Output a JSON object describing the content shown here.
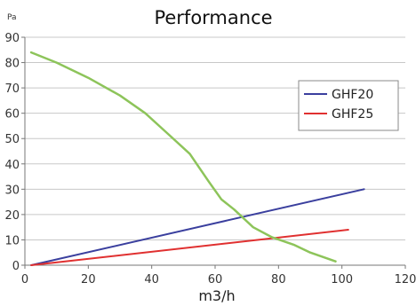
{
  "chart_data": {
    "type": "line",
    "title": "Performance",
    "xlabel": "m3/h",
    "ylabel": "Pa",
    "xlim": [
      0,
      120
    ],
    "ylim": [
      0,
      90
    ],
    "x_ticks": [
      0,
      20,
      40,
      60,
      80,
      100,
      120
    ],
    "y_ticks": [
      0,
      10,
      20,
      30,
      40,
      50,
      60,
      70,
      80,
      90
    ],
    "grid": "horizontal",
    "legend_position": "right",
    "series": [
      {
        "name": "GHF20",
        "color": "#3a3f9e",
        "points": [
          [
            2,
            0
          ],
          [
            107,
            30
          ]
        ]
      },
      {
        "name": "GHF25",
        "color": "#e03030",
        "points": [
          [
            2,
            0
          ],
          [
            102,
            14
          ]
        ]
      },
      {
        "name": "",
        "color": "#8dc45a",
        "points": [
          [
            2,
            84
          ],
          [
            10,
            80
          ],
          [
            20,
            74
          ],
          [
            30,
            67
          ],
          [
            38,
            60
          ],
          [
            45,
            52
          ],
          [
            52,
            44
          ],
          [
            58,
            33
          ],
          [
            62,
            26
          ],
          [
            66,
            22
          ],
          [
            72,
            15
          ],
          [
            78,
            11
          ],
          [
            85,
            8
          ],
          [
            90,
            5
          ],
          [
            98,
            1.5
          ]
        ]
      }
    ]
  }
}
